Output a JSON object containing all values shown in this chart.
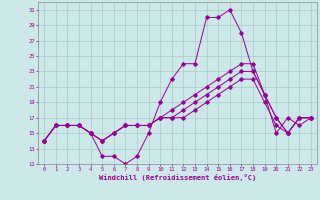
{
  "xlabel": "Windchill (Refroidissement éolien,°C)",
  "bg_color": "#cce8e8",
  "grid_color": "#aacccc",
  "line_color": "#990099",
  "xlim": [
    -0.5,
    23.5
  ],
  "ylim": [
    11,
    32
  ],
  "yticks": [
    11,
    13,
    15,
    17,
    19,
    21,
    23,
    25,
    27,
    29,
    31
  ],
  "xticks": [
    0,
    1,
    2,
    3,
    4,
    5,
    6,
    7,
    8,
    9,
    10,
    11,
    12,
    13,
    14,
    15,
    16,
    17,
    18,
    19,
    20,
    21,
    22,
    23
  ],
  "series": [
    [
      14,
      16,
      16,
      16,
      15,
      12,
      12,
      11,
      12,
      15,
      19,
      22,
      24,
      24,
      30,
      30,
      31,
      28,
      23,
      20,
      15,
      17,
      16,
      17
    ],
    [
      14,
      16,
      16,
      16,
      15,
      14,
      15,
      16,
      16,
      16,
      17,
      18,
      19,
      20,
      21,
      22,
      23,
      24,
      24,
      20,
      17,
      15,
      17,
      17
    ],
    [
      14,
      16,
      16,
      16,
      15,
      14,
      15,
      16,
      16,
      16,
      17,
      17,
      18,
      19,
      20,
      21,
      22,
      23,
      23,
      20,
      17,
      15,
      17,
      17
    ],
    [
      14,
      16,
      16,
      16,
      15,
      14,
      15,
      16,
      16,
      16,
      17,
      17,
      17,
      18,
      19,
      20,
      21,
      22,
      22,
      19,
      16,
      15,
      17,
      17
    ]
  ]
}
